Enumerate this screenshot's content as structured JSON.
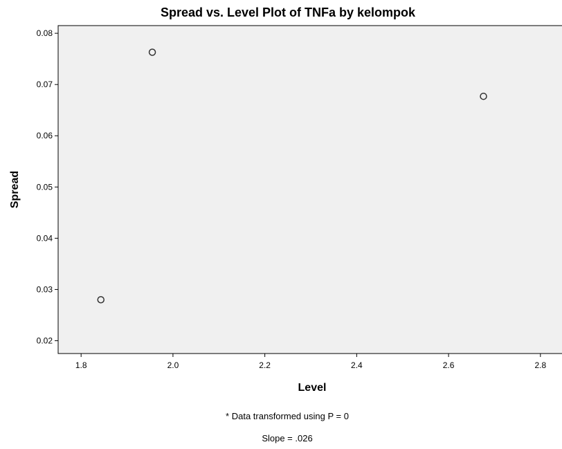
{
  "chart_data": {
    "type": "scatter",
    "title": "Spread vs. Level Plot of TNFa by kelompok",
    "xlabel": "Level",
    "ylabel": "Spread",
    "xlim": [
      1.75,
      2.85
    ],
    "ylim": [
      0.0175,
      0.0815
    ],
    "x_ticks": [
      1.8,
      2.0,
      2.2,
      2.4,
      2.6,
      2.8
    ],
    "x_tick_labels": [
      "1.8",
      "2.0",
      "2.2",
      "2.4",
      "2.6",
      "2.8"
    ],
    "y_ticks": [
      0.02,
      0.03,
      0.04,
      0.05,
      0.06,
      0.07,
      0.08
    ],
    "y_tick_labels": [
      "0.02",
      "0.03",
      "0.04",
      "0.05",
      "0.06",
      "0.07",
      "0.08"
    ],
    "points": [
      {
        "x": 1.843,
        "y": 0.028
      },
      {
        "x": 1.955,
        "y": 0.0763
      },
      {
        "x": 2.676,
        "y": 0.0677
      }
    ],
    "grid": false,
    "legend": "none",
    "colors": {
      "plot_background": "#f0f0f0",
      "marker": "#333333",
      "axis": "#000000"
    },
    "footnotes": [
      "* Data transformed using P = 0",
      "Slope = .026"
    ]
  }
}
